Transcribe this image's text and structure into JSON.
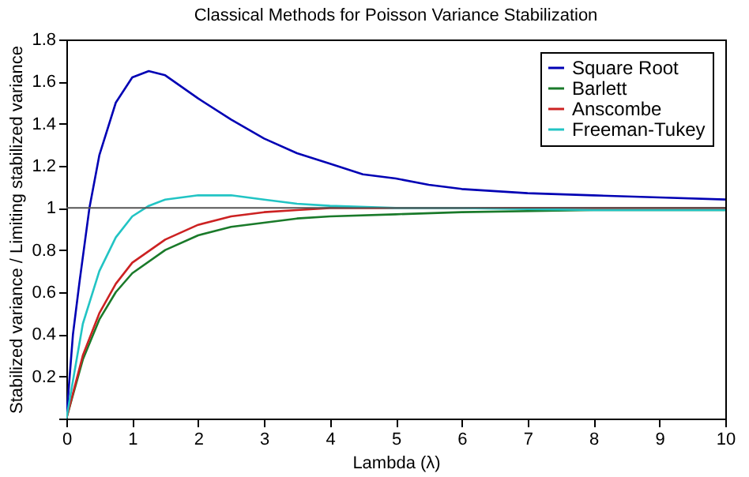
{
  "chart_data": {
    "type": "line",
    "title": "Classical Methods for Poisson Variance Stabilization",
    "xlabel": "Lambda (λ)",
    "ylabel": "Stabilized variance / Limiting stabilized variance",
    "series": [
      {
        "name": "Square Root",
        "color": "#0000b4",
        "x": [
          0,
          0.1,
          0.2,
          0.35,
          0.5,
          0.75,
          1,
          1.25,
          1.5,
          2,
          2.5,
          3,
          3.5,
          4,
          4.5,
          5,
          5.5,
          6,
          7,
          8,
          9,
          10
        ],
        "values": [
          0,
          0.4,
          0.65,
          1.0,
          1.25,
          1.5,
          1.62,
          1.65,
          1.63,
          1.52,
          1.42,
          1.33,
          1.26,
          1.21,
          1.16,
          1.14,
          1.11,
          1.09,
          1.07,
          1.06,
          1.05,
          1.04
        ]
      },
      {
        "name": "Barlett",
        "color": "#1a7a2a",
        "x": [
          0,
          0.25,
          0.5,
          0.75,
          1,
          1.5,
          2,
          2.5,
          3,
          3.5,
          4,
          5,
          6,
          8,
          10
        ],
        "values": [
          0,
          0.28,
          0.47,
          0.6,
          0.69,
          0.8,
          0.87,
          0.91,
          0.93,
          0.95,
          0.96,
          0.97,
          0.98,
          0.99,
          0.99
        ]
      },
      {
        "name": "Anscombe",
        "color": "#cc2222",
        "x": [
          0,
          0.25,
          0.5,
          0.75,
          1,
          1.5,
          2,
          2.5,
          3,
          3.5,
          4,
          5,
          10
        ],
        "values": [
          0,
          0.3,
          0.5,
          0.64,
          0.74,
          0.85,
          0.92,
          0.96,
          0.98,
          0.99,
          1.0,
          1.0,
          1.0
        ]
      },
      {
        "name": "Freeman-Tukey",
        "color": "#22c4c4",
        "x": [
          0,
          0.25,
          0.5,
          0.75,
          1,
          1.25,
          1.5,
          2,
          2.5,
          3,
          3.5,
          4,
          5,
          6,
          8,
          10
        ],
        "values": [
          0,
          0.45,
          0.7,
          0.86,
          0.96,
          1.01,
          1.04,
          1.06,
          1.06,
          1.04,
          1.02,
          1.01,
          1.0,
          1.0,
          0.99,
          0.99
        ]
      }
    ],
    "xlim": [
      0,
      10
    ],
    "xticks": [
      0,
      1,
      2,
      3,
      4,
      5,
      6,
      7,
      8,
      9,
      10
    ],
    "ylim": [
      0,
      1.8
    ],
    "yticks": [
      {
        "value": 0,
        "label": null
      },
      0.2,
      0.4,
      0.6,
      0.8,
      1,
      1.2,
      1.4,
      1.6,
      1.8
    ],
    "ref_lines": [
      {
        "axis": "y",
        "value": 1,
        "color": "#555555"
      }
    ],
    "legend": "top right",
    "grid": false
  }
}
